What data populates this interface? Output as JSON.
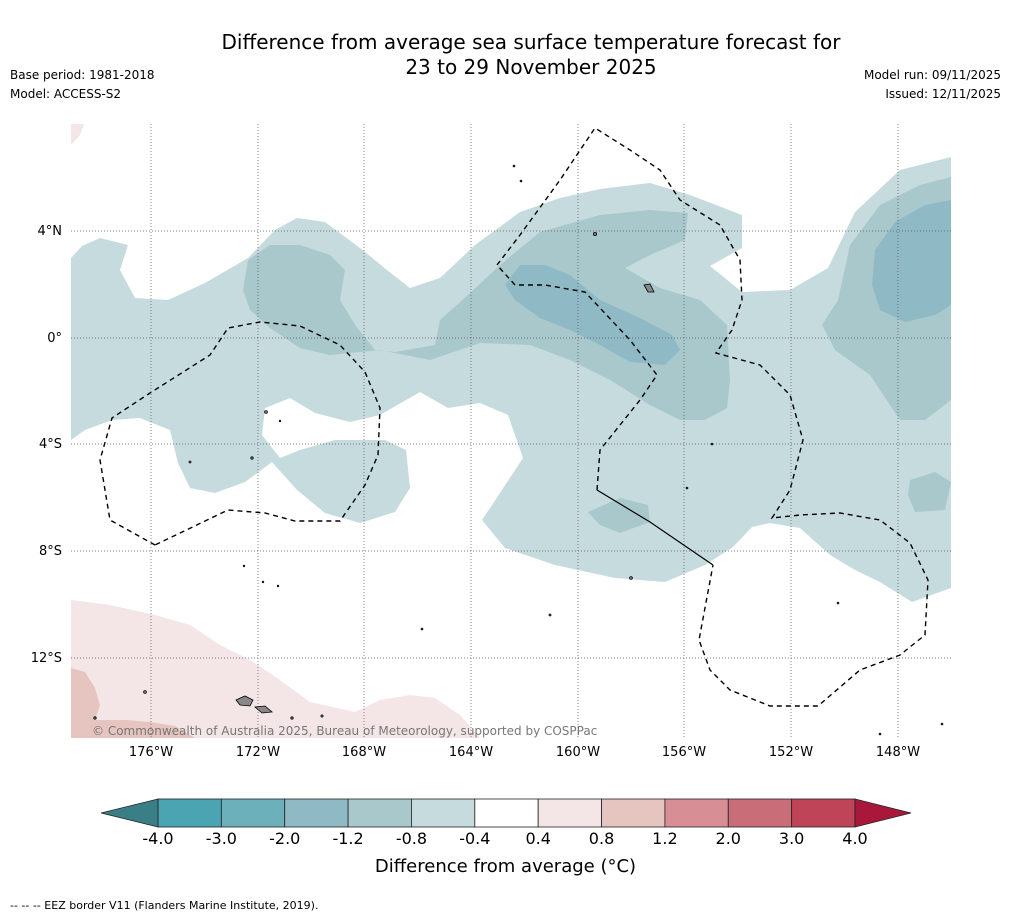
{
  "title": {
    "line1": "Difference from average sea surface temperature forecast for",
    "line2": "23 to 29 November 2025"
  },
  "meta": {
    "base_period": "Base period: 1981-2018",
    "model": "Model: ACCESS-S2",
    "model_run": "Model run: 09/11/2025",
    "issued": "Issued: 12/11/2025"
  },
  "map": {
    "lat_labels": [
      "4°N",
      "0°",
      "4°S",
      "8°S",
      "12°S"
    ],
    "lon_labels": [
      "176°W",
      "172°W",
      "168°W",
      "164°W",
      "160°W",
      "156°W",
      "152°W",
      "148°W"
    ],
    "copyright": "© Commonwealth of Australia 2025, Bureau of Meteorology, supported by COSPPac"
  },
  "colorbar": {
    "labels": [
      "-4.0",
      "-3.0",
      "-2.0",
      "-1.2",
      "-0.8",
      "-0.4",
      "0.4",
      "0.8",
      "1.2",
      "2.0",
      "3.0",
      "4.0"
    ],
    "colors": [
      "#4aa4b2",
      "#6cb0bc",
      "#8fbac5",
      "#a8c8cc",
      "#c6dbde",
      "#ffffff",
      "#f4e6e6",
      "#e6c4bf",
      "#d88e95",
      "#c96d78",
      "#c04458"
    ],
    "low_color": "#3b7f86",
    "high_color": "#a9183a",
    "title": "Difference from average (°C)"
  },
  "footer": "--  --  -- EEZ border V11 (Flanders Marine Institute, 2019)."
}
